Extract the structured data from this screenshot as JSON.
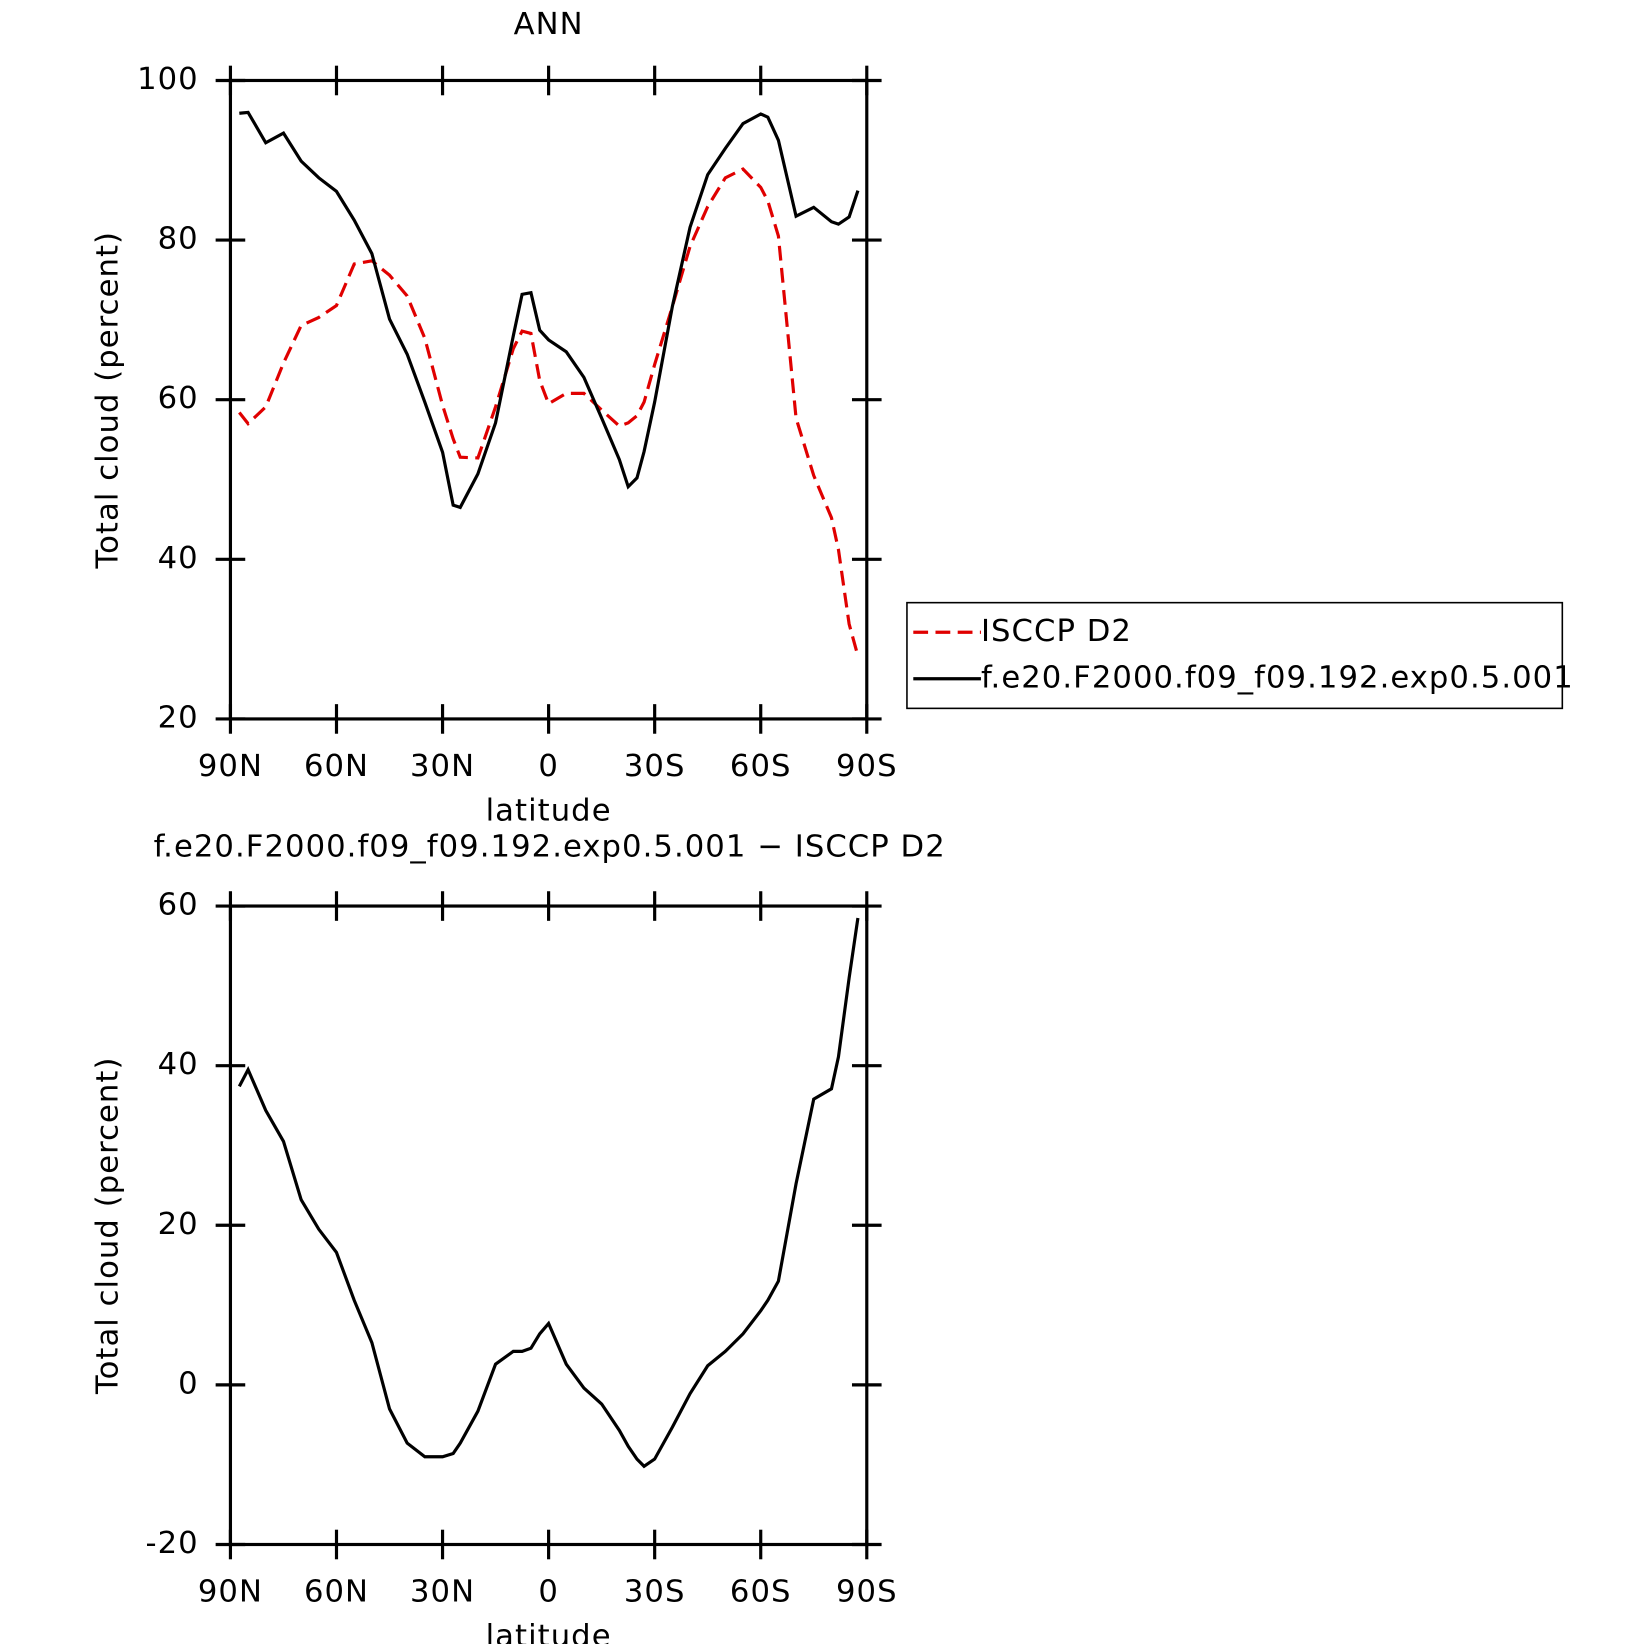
{
  "chart_data": [
    {
      "type": "line",
      "title": "ANN",
      "xlabel": "latitude",
      "ylabel": "Total cloud (percent)",
      "x": [
        87.5,
        85,
        80,
        75,
        70,
        65,
        60,
        55,
        50,
        45,
        40,
        35,
        30,
        27,
        25,
        20,
        15,
        10,
        7.5,
        5,
        2.5,
        0,
        -5,
        -10,
        -15,
        -20,
        -22.5,
        -25,
        -27,
        -30,
        -35,
        -40,
        -45,
        -50,
        -55,
        -60,
        -62,
        -65,
        -70,
        -75,
        -80,
        -82,
        -85,
        -87.5
      ],
      "series": [
        {
          "name": "ISCCP D2",
          "color": "#e00000",
          "dashed": true,
          "values": [
            58.4,
            57.0,
            59.1,
            64.6,
            69.3,
            70.3,
            71.8,
            77.0,
            77.4,
            75.6,
            73.0,
            67.7,
            59.3,
            55.1,
            52.8,
            52.7,
            59.1,
            66.4,
            68.6,
            68.3,
            62.4,
            59.5,
            60.8,
            60.8,
            58.7,
            56.7,
            57.1,
            58.0,
            59.7,
            64.4,
            71.7,
            79.2,
            84.2,
            87.8,
            88.9,
            86.6,
            84.9,
            80.5,
            57.7,
            50.5,
            45.2,
            41.2,
            31.9,
            27.9
          ]
        },
        {
          "name": "f.e20.F2000.f09_f09.192.exp0.5.001",
          "color": "#000000",
          "dashed": false,
          "values": [
            95.9,
            96.0,
            92.2,
            93.4,
            89.9,
            87.8,
            86.1,
            82.5,
            78.3,
            70.1,
            65.7,
            59.7,
            53.4,
            46.8,
            46.5,
            50.7,
            57.1,
            68.0,
            73.2,
            73.4,
            68.7,
            67.5,
            66.0,
            62.8,
            57.7,
            52.5,
            49.1,
            50.2,
            53.5,
            59.7,
            71.7,
            81.6,
            88.2,
            91.5,
            94.6,
            95.8,
            95.4,
            92.5,
            83.0,
            84.1,
            82.3,
            82.0,
            82.9,
            86.2
          ]
        }
      ],
      "xlim": [
        90,
        -90
      ],
      "xticks": [
        {
          "value": 90,
          "label": "90N"
        },
        {
          "value": 60,
          "label": "60N"
        },
        {
          "value": 30,
          "label": "30N"
        },
        0,
        {
          "value": -30,
          "label": "30S"
        },
        {
          "value": -60,
          "label": "60S"
        },
        {
          "value": -90,
          "label": "90S"
        }
      ],
      "ylim": [
        20,
        100
      ],
      "yticks": [
        20,
        40,
        60,
        80,
        100
      ],
      "legend": "right"
    },
    {
      "type": "line",
      "title": "f.e20.F2000.f09_f09.192.exp0.5.001 − ISCCP D2",
      "xlabel": "latitude",
      "ylabel": "Total cloud (percent)",
      "x": [
        87.5,
        85,
        80,
        75,
        70,
        65,
        60,
        55,
        50,
        45,
        40,
        35,
        30,
        27,
        25,
        20,
        15,
        10,
        7.5,
        5,
        2.5,
        0,
        -5,
        -10,
        -15,
        -20,
        -22.5,
        -25,
        -27,
        -30,
        -35,
        -40,
        -45,
        -50,
        -55,
        -60,
        -62,
        -65,
        -70,
        -75,
        -80,
        -82,
        -85,
        -87.5
      ],
      "values": [
        37.4,
        39.5,
        34.4,
        30.5,
        23.2,
        19.5,
        16.6,
        10.6,
        5.3,
        -3.0,
        -7.3,
        -9.0,
        -9.0,
        -8.6,
        -7.3,
        -3.3,
        2.6,
        4.2,
        4.2,
        4.6,
        6.4,
        7.7,
        2.6,
        -0.4,
        -2.4,
        -5.7,
        -7.7,
        -9.3,
        -10.2,
        -9.3,
        -5.3,
        -1.1,
        2.4,
        4.2,
        6.4,
        9.3,
        10.6,
        13.0,
        25.2,
        35.8,
        37.1,
        41.1,
        51.0,
        58.5
      ],
      "color": "#000000",
      "xlim": [
        90,
        -90
      ],
      "xticks": [
        {
          "value": 90,
          "label": "90N"
        },
        {
          "value": 60,
          "label": "60N"
        },
        {
          "value": 30,
          "label": "30N"
        },
        0,
        {
          "value": -30,
          "label": "30S"
        },
        {
          "value": -60,
          "label": "60S"
        },
        {
          "value": -90,
          "label": "90S"
        }
      ],
      "ylim": [
        -20,
        60
      ],
      "yticks": [
        -20,
        0,
        20,
        40,
        60
      ]
    }
  ]
}
